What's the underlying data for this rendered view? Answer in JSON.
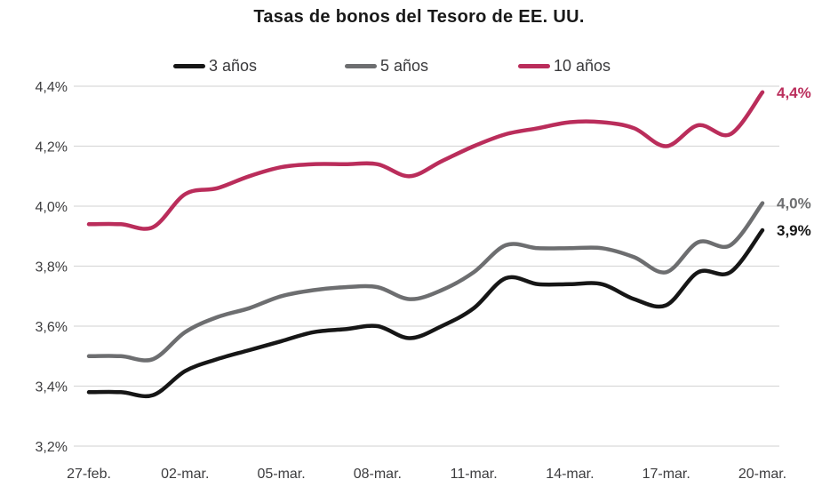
{
  "title": "Tasas de bonos del Tesoro de EE. UU.",
  "chart_data": {
    "type": "line",
    "title": "Tasas de bonos del Tesoro de EE. UU.",
    "x": [
      "27-feb.",
      "28-feb.",
      "01-mar.",
      "02-mar.",
      "03-mar.",
      "04-mar.",
      "05-mar.",
      "06-mar.",
      "07-mar.",
      "08-mar.",
      "09-mar.",
      "10-mar.",
      "11-mar.",
      "12-mar.",
      "13-mar.",
      "14-mar.",
      "15-mar.",
      "16-mar.",
      "17-mar.",
      "18-mar.",
      "19-mar.",
      "20-mar."
    ],
    "x_tick_indices": [
      0,
      3,
      6,
      9,
      12,
      15,
      18,
      21
    ],
    "x_tick_labels": [
      "27-feb.",
      "02-mar.",
      "05-mar.",
      "08-mar.",
      "11-mar.",
      "14-mar.",
      "17-mar.",
      "20-mar."
    ],
    "y_ticks": [
      "4,4%",
      "4,2%",
      "4,0%",
      "3,8%",
      "3,6%",
      "3,4%",
      "3,2%"
    ],
    "y_tick_values": [
      4.4,
      4.2,
      4.0,
      3.8,
      3.6,
      3.4,
      3.2
    ],
    "ylim": [
      3.2,
      4.4
    ],
    "grid": "horizontal",
    "gridline_color": "#d9d9d9",
    "axis_label_color": "#3d3d3f",
    "legend_position": "top",
    "series": [
      {
        "name": "3 años",
        "color": "#161616",
        "end_label": "3,9%",
        "values": [
          3.38,
          3.38,
          3.37,
          3.45,
          3.49,
          3.52,
          3.55,
          3.58,
          3.59,
          3.6,
          3.56,
          3.6,
          3.66,
          3.76,
          3.74,
          3.74,
          3.74,
          3.69,
          3.67,
          3.78,
          3.78,
          3.92
        ]
      },
      {
        "name": "5 años",
        "color": "#6d6e70",
        "end_label": "4,0%",
        "values": [
          3.5,
          3.5,
          3.49,
          3.58,
          3.63,
          3.66,
          3.7,
          3.72,
          3.73,
          3.73,
          3.69,
          3.72,
          3.78,
          3.87,
          3.86,
          3.86,
          3.86,
          3.83,
          3.78,
          3.88,
          3.87,
          4.01
        ]
      },
      {
        "name": "10 años",
        "color": "#ba2d5b",
        "end_label": "4,4%",
        "values": [
          3.94,
          3.94,
          3.93,
          4.04,
          4.06,
          4.1,
          4.13,
          4.14,
          4.14,
          4.14,
          4.1,
          4.15,
          4.2,
          4.24,
          4.26,
          4.28,
          4.28,
          4.26,
          4.2,
          4.27,
          4.24,
          4.38
        ]
      }
    ]
  }
}
